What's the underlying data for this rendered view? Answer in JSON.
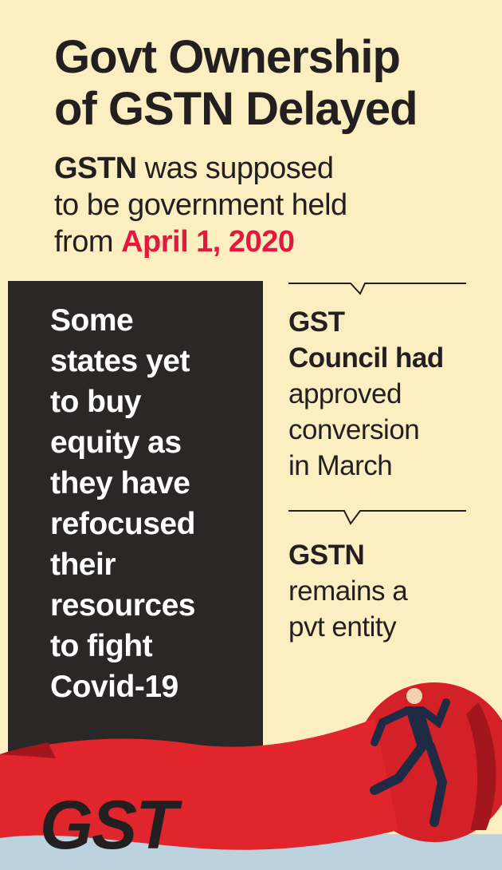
{
  "title_lines": [
    "Govt Ownership",
    "of GSTN Delayed"
  ],
  "subtitle": {
    "lead": "GSTN",
    "lines": [
      "was supposed",
      "to be government held",
      "from"
    ],
    "date": "April 1, 2020"
  },
  "box_lines": [
    "Some",
    "states yet",
    "to buy",
    "equity as",
    "they have",
    "refocused",
    "their",
    "resources",
    "to fight",
    "Covid-19"
  ],
  "callouts": [
    {
      "bold": [
        "GST",
        "Council had"
      ],
      "text": [
        "approved",
        "conversion",
        "in March"
      ]
    },
    {
      "bold": [
        "GSTN"
      ],
      "text": [
        "remains a",
        "pvt entity"
      ]
    }
  ],
  "logo": "GST"
}
